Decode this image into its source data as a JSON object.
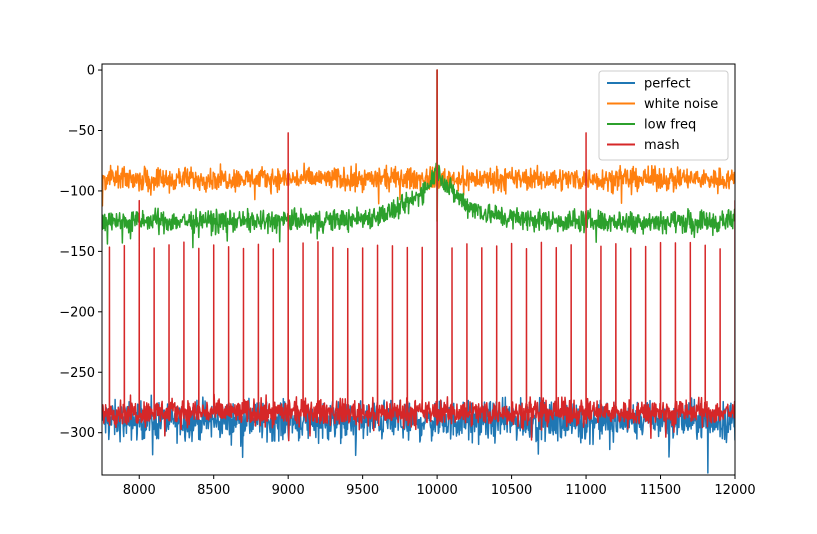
{
  "chart_data": {
    "type": "line",
    "title": "",
    "xlabel": "",
    "ylabel": "",
    "xlim": [
      7750,
      12000
    ],
    "ylim": [
      -335,
      5
    ],
    "xticks": [
      8000,
      8500,
      9000,
      9500,
      10000,
      10500,
      11000,
      11500,
      12000
    ],
    "xtick_labels": [
      "8000",
      "8500",
      "9000",
      "9500",
      "10000",
      "10500",
      "11000",
      "11500",
      "12000"
    ],
    "yticks": [
      0,
      -50,
      -100,
      -150,
      -200,
      -250,
      -300
    ],
    "ytick_labels": [
      "0",
      "−50",
      "−100",
      "−150",
      "−200",
      "−250",
      "−300"
    ],
    "legend_position": "top-right",
    "series": [
      {
        "name": "perfect",
        "color": "#1f77b4",
        "noise_floor": -290,
        "noise_spread": 12,
        "peaks": [
          [
            10000,
            0
          ]
        ]
      },
      {
        "name": "white noise",
        "color": "#ff7f0e",
        "noise_floor": -90,
        "noise_spread": 7,
        "peaks": [
          [
            10000,
            0
          ]
        ]
      },
      {
        "name": "low freq",
        "color": "#2ca02c",
        "noise_floor": -125,
        "noise_spread": 7,
        "center_bump": [
          10000,
          -82
        ],
        "peaks": [
          [
            10000,
            0
          ]
        ]
      },
      {
        "name": "mash",
        "color": "#d62728",
        "noise_floor": -283,
        "noise_spread": 8,
        "spur_spacing": 100,
        "spur_level": -145,
        "peaks": [
          [
            9000,
            -52
          ],
          [
            10000,
            0
          ],
          [
            11000,
            -52
          ],
          [
            8000,
            -108
          ],
          [
            12000,
            -108
          ]
        ]
      }
    ]
  }
}
